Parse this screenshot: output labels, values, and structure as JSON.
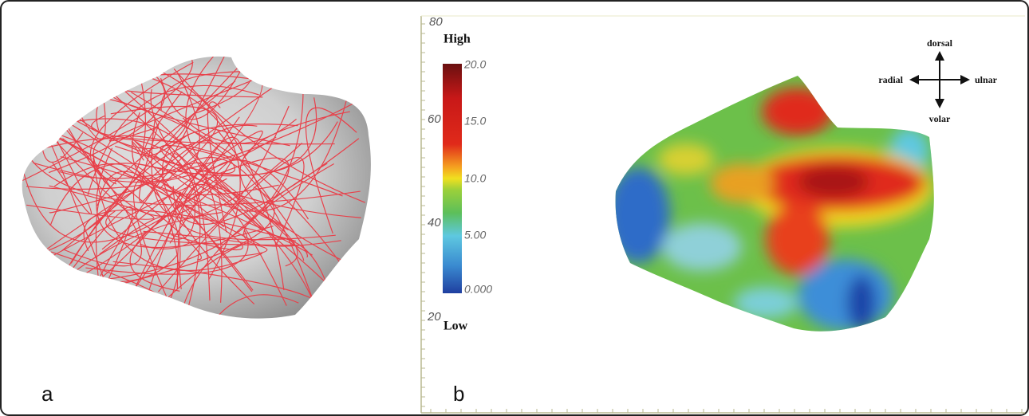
{
  "panels": [
    {
      "letter": "a"
    },
    {
      "letter": "b",
      "axis_ticks": [
        "80",
        "60",
        "40",
        "20"
      ],
      "colorbar": {
        "high": "High",
        "low": "Low",
        "ticks": [
          "20.0",
          "15.0",
          "10.0",
          "5.00",
          "0.000"
        ]
      },
      "compass": {
        "up": "dorsal",
        "left": "radial",
        "right": "ulnar",
        "down": "volar"
      }
    }
  ]
}
